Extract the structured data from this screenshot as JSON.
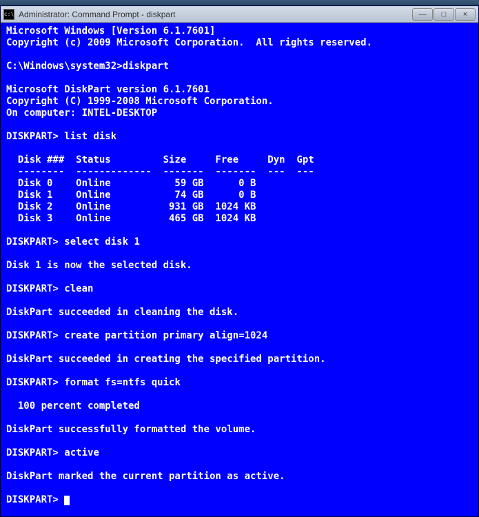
{
  "window": {
    "title": "Administrator: Command Prompt - diskpart",
    "icon_label": "c:\\",
    "minimize": "—",
    "maximize": "□",
    "close": "×"
  },
  "terminal": {
    "header1": "Microsoft Windows [Version 6.1.7601]",
    "header2": "Copyright (c) 2009 Microsoft Corporation.  All rights reserved.",
    "prompt_path": "C:\\Windows\\system32>",
    "cmd_diskpart": "diskpart",
    "diskpart_header1": "Microsoft DiskPart version 6.1.7601",
    "diskpart_header2": "Copyright (C) 1999-2008 Microsoft Corporation.",
    "diskpart_header3": "On computer: INTEL-DESKTOP",
    "diskpart_prompt": "DISKPART>",
    "cmd_list": "list disk",
    "table_header": "  Disk ###  Status         Size     Free     Dyn  Gpt",
    "table_divider": "  --------  -------------  -------  -------  ---  ---",
    "disk0": "  Disk 0    Online           59 GB      0 B",
    "disk1": "  Disk 1    Online           74 GB      0 B",
    "disk2": "  Disk 2    Online          931 GB  1024 KB",
    "disk3": "  Disk 3    Online          465 GB  1024 KB",
    "cmd_select": "select disk 1",
    "msg_select": "Disk 1 is now the selected disk.",
    "cmd_clean": "clean",
    "msg_clean": "DiskPart succeeded in cleaning the disk.",
    "cmd_create": "create partition primary align=1024",
    "msg_create": "DiskPart succeeded in creating the specified partition.",
    "cmd_format": "format fs=ntfs quick",
    "msg_format_progress": "  100 percent completed",
    "msg_format": "DiskPart successfully formatted the volume.",
    "cmd_active": "active",
    "msg_active": "DiskPart marked the current partition as active.",
    "colors": {
      "background": "#0000ff",
      "foreground": "#ffffff",
      "titlebar_bg": "#c4cdd8"
    },
    "font_size": 14
  }
}
